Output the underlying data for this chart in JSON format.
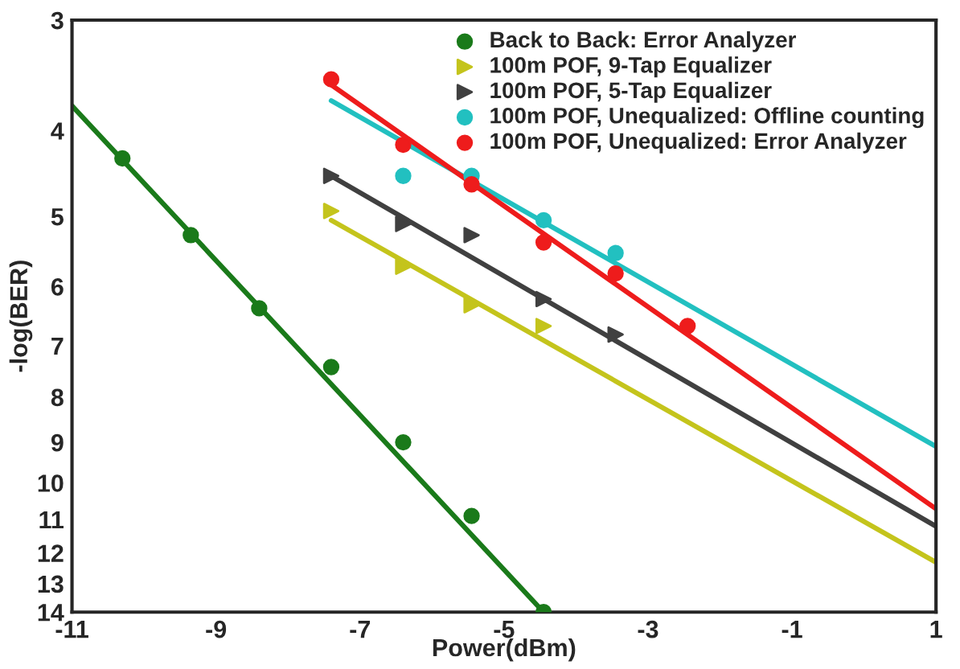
{
  "chart_data": {
    "type": "scatter",
    "xlabel": "Power(dBm)",
    "ylabel": "-log(BER)",
    "log": "y",
    "xlim": [
      -11,
      1
    ],
    "xticks": [
      -11,
      -9,
      -7,
      -5,
      -3,
      -1,
      1
    ],
    "ylim": [
      14,
      3
    ],
    "yticks": [
      3,
      4,
      5,
      6,
      7,
      8,
      9,
      10,
      11,
      12,
      13,
      14
    ],
    "grid": false,
    "legend": "top right",
    "series": [
      {
        "name": "Back to Back: Error Analyzer",
        "marker": "circle",
        "color": "#1a7a1a",
        "x": [
          -10.3,
          -9.35,
          -8.4,
          -7.4,
          -6.4,
          -5.45,
          -4.45
        ],
        "values": [
          4.3,
          5.25,
          6.35,
          7.4,
          9.0,
          10.9,
          14
        ]
      },
      {
        "name": "100m POF, 9-Tap Equalizer",
        "marker": "triangle",
        "color": "#c4c41c",
        "x": [
          -7.4,
          -6.4,
          -5.45,
          -4.45
        ],
        "values": [
          4.93,
          5.7,
          6.3,
          6.65
        ]
      },
      {
        "name": "100m POF, 5-Tap Equalizer",
        "marker": "triangle",
        "color": "#404040",
        "x": [
          -7.4,
          -6.4,
          -5.45,
          -4.45,
          -3.45
        ],
        "values": [
          4.5,
          5.1,
          5.25,
          6.2,
          6.8
        ]
      },
      {
        "name": "100m POF, Unequalized: Offline counting",
        "marker": "circle",
        "color": "#22c0c0",
        "x": [
          -6.4,
          -5.45,
          -4.45,
          -3.45
        ],
        "values": [
          4.5,
          4.5,
          5.05,
          5.5
        ]
      },
      {
        "name": "100m POF, Unequalized: Error Analyzer",
        "marker": "circle",
        "color": "#ee1c1c",
        "x": [
          -7.4,
          -6.4,
          -5.45,
          -4.45,
          -3.45,
          -2.45
        ],
        "values": [
          3.5,
          4.15,
          4.6,
          5.35,
          5.8,
          6.65
        ]
      },
      {
        "type": "line",
        "marker": "none",
        "color": "#1a7a1a",
        "x": [
          -11,
          -4.45
        ],
        "values": [
          3.75,
          14
        ]
      },
      {
        "type": "line",
        "marker": "none",
        "color": "#c4c41c",
        "x": [
          -7.4,
          1
        ],
        "values": [
          5.05,
          12.3
        ]
      },
      {
        "type": "line",
        "marker": "none",
        "color": "#404040",
        "x": [
          -7.4,
          1
        ],
        "values": [
          4.5,
          11.2
        ]
      },
      {
        "type": "line",
        "marker": "none",
        "color": "#22c0c0",
        "x": [
          -7.4,
          1
        ],
        "values": [
          3.7,
          9.1
        ]
      },
      {
        "type": "line",
        "marker": "none",
        "color": "#ee1c1c",
        "x": [
          -7.4,
          1
        ],
        "values": [
          3.55,
          10.7
        ]
      }
    ]
  }
}
